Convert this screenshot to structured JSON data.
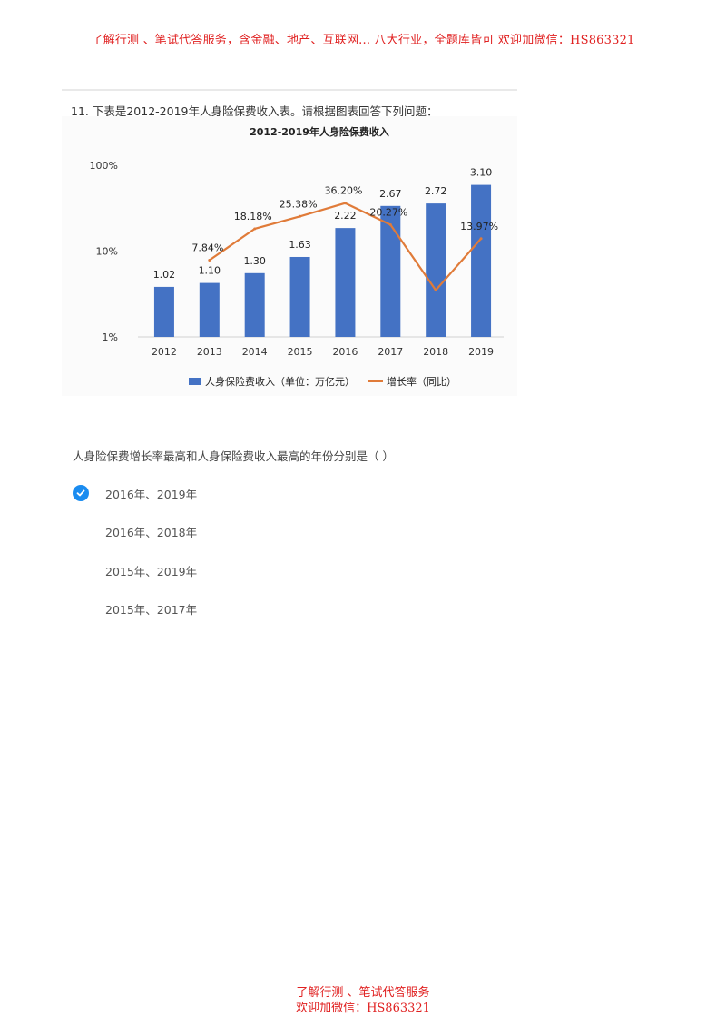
{
  "banner_top": "了解行测 、笔试代答服务，含金融、地产、互联网... 八大行业，全题库皆可 欢迎加微信：HS863321",
  "question": {
    "title": "11. 下表是2012-2019年人身险保费收入表。请根据图表回答下列问题：",
    "prompt": "人身险保费增长率最高和人身保险费收入最高的年份分别是（ ）"
  },
  "chart_data": {
    "type": "bar",
    "title": "2012-2019年人身险保费收入",
    "categories": [
      "2012",
      "2013",
      "2014",
      "2015",
      "2016",
      "2017",
      "2018",
      "2019"
    ],
    "series": [
      {
        "name": "人身保险费收入（单位：万亿元）",
        "type": "bar",
        "axis": "right",
        "values": [
          1.02,
          1.1,
          1.3,
          1.63,
          2.22,
          2.67,
          2.72,
          3.1
        ],
        "labels": [
          "1.02",
          "1.10",
          "1.30",
          "1.63",
          "2.22",
          "2.67",
          "2.72",
          "3.10"
        ],
        "color": "#4472c4"
      },
      {
        "name": "增长率（同比）",
        "type": "line",
        "axis": "left",
        "values": [
          null,
          7.84,
          18.18,
          25.38,
          36.2,
          20.27,
          3.5,
          13.97
        ],
        "labels": [
          "",
          "7.84%",
          "18.18%",
          "25.38%",
          "36.20%",
          "20.27%",
          "",
          "13.97%"
        ],
        "color": "#e07b39"
      }
    ],
    "left_axis": {
      "scale": "log",
      "ticks": [
        "1%",
        "10%",
        "100%"
      ],
      "range": [
        1,
        100
      ]
    },
    "right_axis": {
      "ticks": [
        "0.0",
        "0.5",
        "1.0",
        "1.5",
        "2.0",
        "2.5",
        "3.0",
        "3.5"
      ],
      "range": [
        0,
        3.5
      ]
    },
    "legend_position": "bottom",
    "grid": false
  },
  "options": [
    {
      "label": "2016年、2019年",
      "selected": true
    },
    {
      "label": "2016年、2018年",
      "selected": false
    },
    {
      "label": "2015年、2019年",
      "selected": false
    },
    {
      "label": "2015年、2017年",
      "selected": false
    }
  ],
  "banner_bottom": {
    "line1": "了解行测 、笔试代答服务",
    "line2": "欢迎加微信：HS863321"
  },
  "colors": {
    "banner": "#e02020",
    "check": "#1a8cf0"
  },
  "icons": {
    "selected": "check-circle-icon"
  }
}
